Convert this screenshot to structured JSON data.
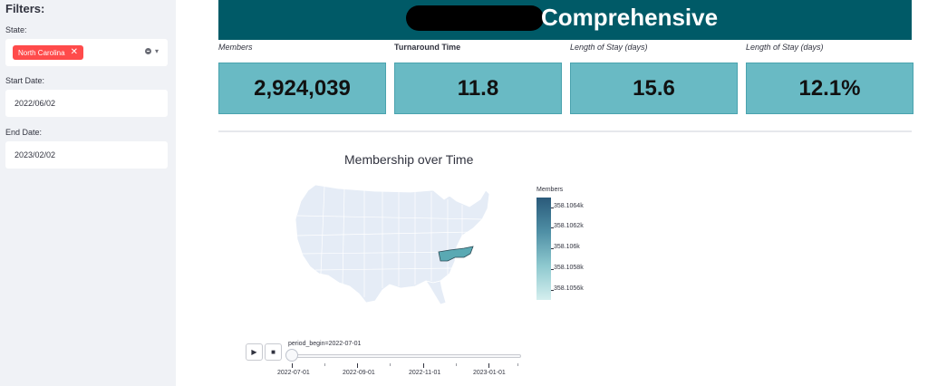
{
  "sidebar": {
    "title": "Filters:",
    "state_label": "State:",
    "state_selected": "North Carolina",
    "start_label": "Start Date:",
    "start_value": "2022/06/02",
    "end_label": "End Date:",
    "end_value": "2023/02/02",
    "chip_close_glyph": "✕",
    "dropdown_glyph": "▾"
  },
  "header": {
    "title": "Comprehensive"
  },
  "kpis": [
    {
      "label": "Members",
      "value": "2,924,039"
    },
    {
      "label": "Turnaround Time",
      "value": "11.8"
    },
    {
      "label": "Length of Stay (days)",
      "value": "15.6"
    },
    {
      "label": "Length of Stay (days)",
      "value": "12.1%"
    }
  ],
  "chart": {
    "title": "Membership over Time",
    "colorbar_title": "Members",
    "colorbar_ticks": [
      "358.1064k",
      "358.1062k",
      "358.106k",
      "358.1058k",
      "358.1056k"
    ],
    "play_glyph": "▶",
    "stop_glyph": "■",
    "slider_label": "period_begin=2022-07-01",
    "slider_ticks": [
      "2022-07-01",
      "2022-09-01",
      "2022-11-01",
      "2023-01-01"
    ]
  },
  "colors": {
    "banner": "#005a67",
    "kpi_fill": "#69bac4",
    "chip": "#ff4b4b",
    "map_land": "#e5ecf6",
    "highlight_state": "#5aa9b3",
    "sidebar": "#f0f2f6"
  },
  "chart_data": {
    "type": "choropleth",
    "title": "Membership over Time",
    "colorbar_title": "Members",
    "regions": [
      {
        "name": "North Carolina",
        "highlighted": true
      }
    ],
    "animation_frame": "period_begin=2022-07-01",
    "frames": [
      "2022-07-01",
      "2022-09-01",
      "2022-11-01",
      "2023-01-01"
    ]
  }
}
